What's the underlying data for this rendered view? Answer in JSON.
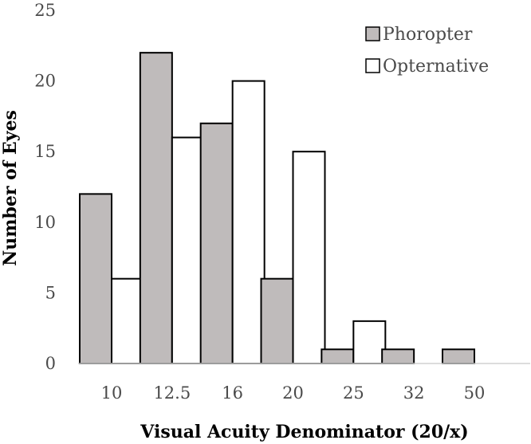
{
  "chart_data": {
    "type": "bar",
    "title": "",
    "xlabel": "Visual Acuity Denominator (20/x)",
    "ylabel": "Number of Eyes",
    "categories": [
      "10",
      "12.5",
      "16",
      "20",
      "25",
      "32",
      "50"
    ],
    "series": [
      {
        "name": "Phoropter",
        "values": [
          12,
          22,
          17,
          6,
          1,
          1,
          1
        ],
        "color": "#bfbbbb"
      },
      {
        "name": "Opternative",
        "values": [
          6,
          16,
          20,
          15,
          3,
          0,
          0
        ],
        "color": "#ffffff"
      }
    ],
    "ylim": [
      0,
      25
    ],
    "yticks": [
      0,
      5,
      10,
      15,
      20,
      25
    ],
    "grid": false,
    "legend": "top-right"
  }
}
